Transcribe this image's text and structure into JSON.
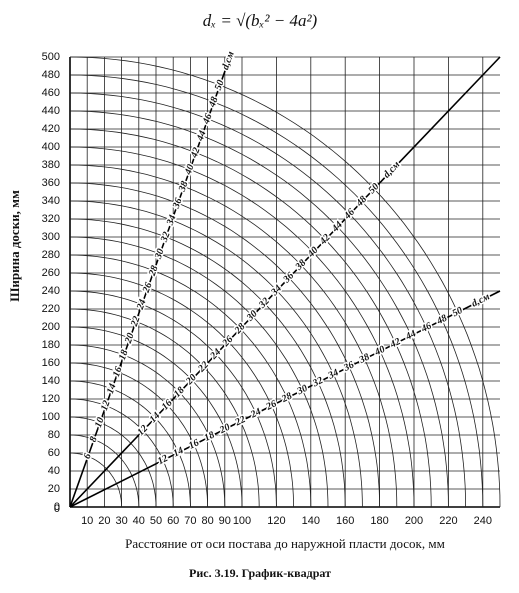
{
  "chart_data": {
    "type": "nomogram",
    "formula": "dₓ = √(bₓ² − 4a²)",
    "xlabel": "Расстояние от оси постава до наружной пласти досок, мм",
    "ylabel": "Ширина доски, мм",
    "caption": "Рис. 3.19. График-квадрат",
    "origin_label": "0",
    "xlim": [
      0,
      250
    ],
    "ylim": [
      0,
      500
    ],
    "xticks": [
      10,
      20,
      30,
      40,
      50,
      60,
      70,
      80,
      90,
      100,
      120,
      140,
      160,
      180,
      200,
      220,
      240
    ],
    "yticks": [
      0,
      20,
      40,
      60,
      80,
      100,
      120,
      140,
      160,
      180,
      200,
      220,
      240,
      260,
      280,
      300,
      320,
      340,
      360,
      380,
      400,
      420,
      440,
      460,
      480,
      500
    ],
    "grid": true,
    "lines": [
      {
        "end": [
          93,
          500
        ],
        "unit": "d,см",
        "labels": [
          6,
          8,
          10,
          12,
          14,
          16,
          18,
          20,
          22,
          24,
          26,
          28,
          30,
          32,
          34,
          36,
          38,
          40,
          42,
          44,
          46,
          48,
          50
        ]
      },
      {
        "end": [
          250,
          500
        ],
        "unit": "d,см",
        "labels": [
          12,
          14,
          16,
          18,
          20,
          22,
          24,
          26,
          28,
          30,
          32,
          34,
          36,
          38,
          40,
          42,
          44,
          46,
          48,
          50
        ]
      },
      {
        "end": [
          250,
          240
        ],
        "unit": "d,см",
        "labels": [
          12,
          14,
          16,
          18,
          20,
          22,
          24,
          26,
          28,
          30,
          32,
          34,
          36,
          38,
          40,
          42,
          44,
          46,
          48,
          50
        ]
      }
    ]
  }
}
